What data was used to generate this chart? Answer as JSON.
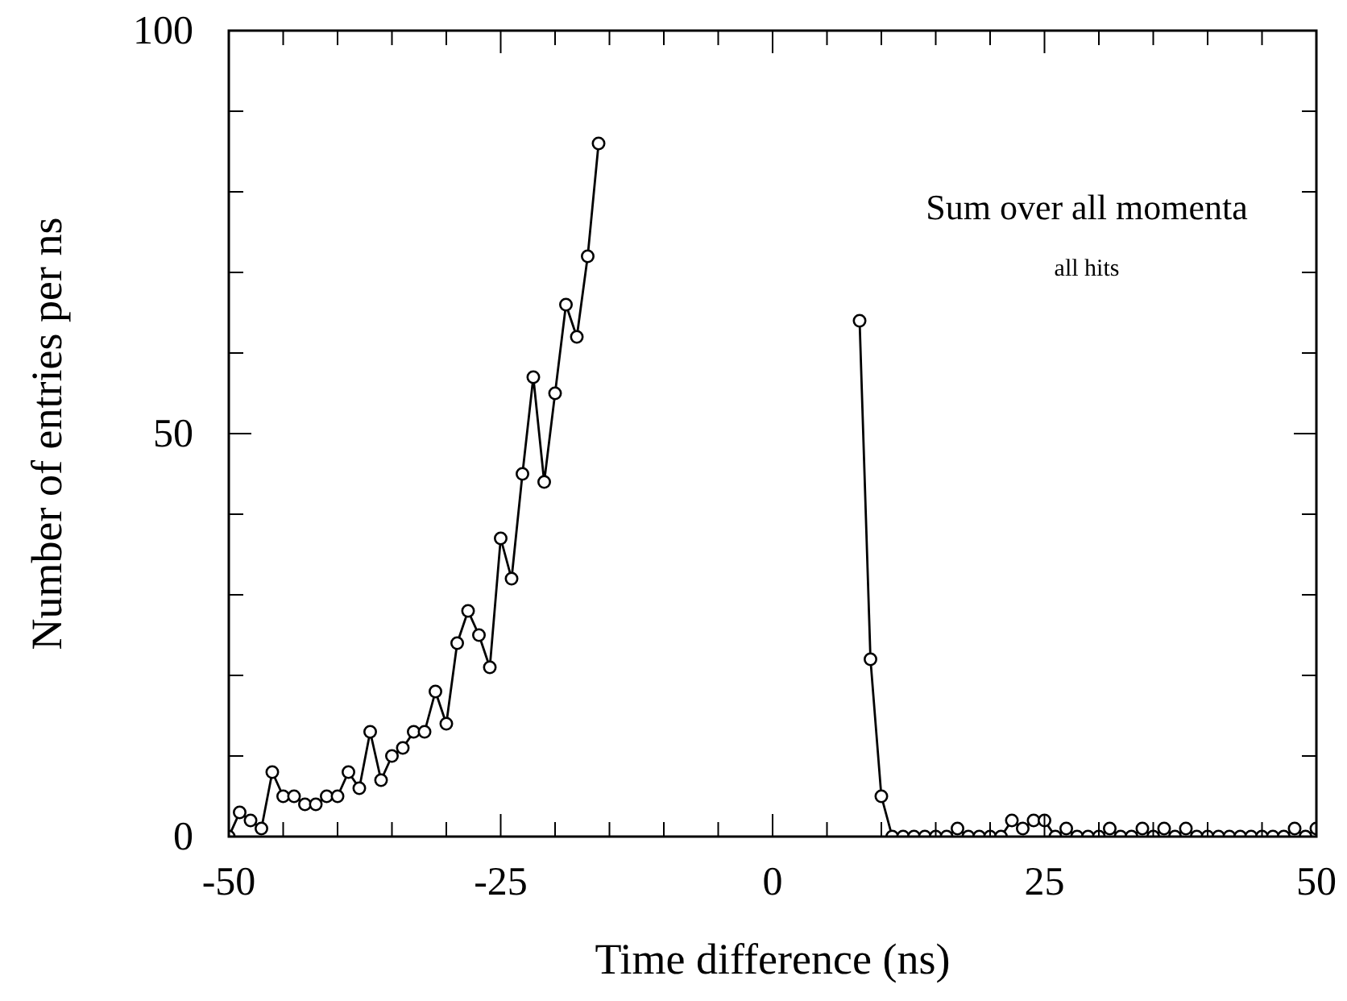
{
  "chart_data": {
    "type": "line",
    "xlabel": "Time difference (ns)",
    "ylabel": "Number of entries per ns",
    "annotations": [
      "Sum over all momenta",
      "all hits"
    ],
    "x": [
      -50,
      -49,
      -48,
      -47,
      -46,
      -45,
      -44,
      -43,
      -42,
      -41,
      -40,
      -39,
      -38,
      -37,
      -36,
      -35,
      -34,
      -33,
      -32,
      -31,
      -30,
      -29,
      -28,
      -27,
      -26,
      -25,
      -24,
      -23,
      -22,
      -21,
      -20,
      -19,
      -18,
      -17,
      -16,
      -15,
      7,
      8,
      9,
      10,
      11,
      12,
      13,
      14,
      15,
      16,
      17,
      18,
      19,
      20,
      21,
      22,
      23,
      24,
      25,
      26,
      27,
      28,
      29,
      30,
      31,
      32,
      33,
      34,
      35,
      36,
      37,
      38,
      39,
      40,
      41,
      42,
      43,
      44,
      45,
      46,
      47,
      48,
      49,
      50
    ],
    "series": [
      {
        "color": "#000000",
        "values": [
          0,
          3,
          2,
          1,
          8,
          5,
          5,
          4,
          4,
          5,
          5,
          8,
          6,
          13,
          7,
          10,
          11,
          13,
          13,
          18,
          14,
          24,
          28,
          25,
          21,
          37,
          32,
          45,
          57,
          44,
          55,
          66,
          62,
          72,
          86,
          null,
          null,
          64,
          22,
          5,
          0,
          0,
          0,
          0,
          0,
          0,
          1,
          0,
          0,
          0,
          0,
          2,
          1,
          2,
          2,
          0,
          1,
          0,
          0,
          0,
          1,
          0,
          0,
          1,
          0,
          1,
          0,
          1,
          0,
          0,
          0,
          0,
          0,
          0,
          0,
          0,
          0,
          1,
          0,
          1
        ]
      }
    ],
    "xlim": [
      -50,
      50
    ],
    "ylim": [
      0,
      100
    ],
    "xticks": [
      -50,
      {
        "value": -45,
        "label": null
      },
      {
        "value": -40,
        "label": null
      },
      {
        "value": -35,
        "label": null
      },
      {
        "value": -30,
        "label": null
      },
      -25,
      {
        "value": -20,
        "label": null
      },
      {
        "value": -15,
        "label": null
      },
      {
        "value": -10,
        "label": null
      },
      {
        "value": -5,
        "label": null
      },
      0,
      {
        "value": 5,
        "label": null
      },
      {
        "value": 10,
        "label": null
      },
      {
        "value": 15,
        "label": null
      },
      {
        "value": 20,
        "label": null
      },
      25,
      {
        "value": 30,
        "label": null
      },
      {
        "value": 35,
        "label": null
      },
      {
        "value": 40,
        "label": null
      },
      {
        "value": 45,
        "label": null
      },
      50
    ],
    "yticks": [
      0,
      {
        "value": 10,
        "label": null
      },
      {
        "value": 20,
        "label": null
      },
      {
        "value": 30,
        "label": null
      },
      {
        "value": 40,
        "label": null
      },
      50,
      {
        "value": 60,
        "label": null
      },
      {
        "value": 70,
        "label": null
      },
      {
        "value": 80,
        "label": null
      },
      {
        "value": 90,
        "label": null
      },
      100
    ],
    "marker": "circle",
    "line_style": "solid",
    "grid": false
  }
}
